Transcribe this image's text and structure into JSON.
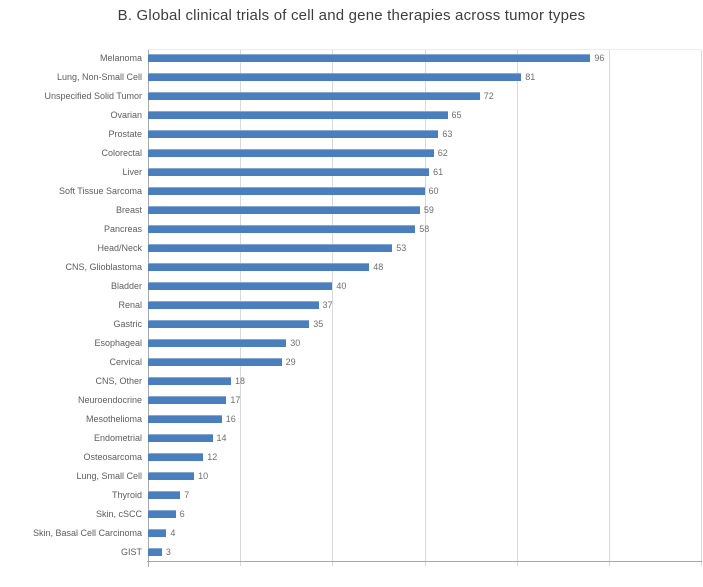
{
  "chart_data": {
    "type": "bar",
    "orientation": "horizontal",
    "title": "B. Global clinical trials of cell and gene therapies across tumor types",
    "categories": [
      "Melanoma",
      "Lung, Non-Small Cell",
      "Unspecified Solid Tumor",
      "Ovarian",
      "Prostate",
      "Colorectal",
      "Liver",
      "Soft Tissue Sarcoma",
      "Breast",
      "Pancreas",
      "Head/Neck",
      "CNS, Glioblastoma",
      "Bladder",
      "Renal",
      "Gastric",
      "Esophageal",
      "Cervical",
      "CNS, Other",
      "Neuroendocrine",
      "Mesothelioma",
      "Endometrial",
      "Osteosarcoma",
      "Lung, Small Cell",
      "Thyroid",
      "Skin, cSCC",
      "Skin, Basal Cell Carcinoma",
      "GIST"
    ],
    "values": [
      96,
      81,
      72,
      65,
      63,
      62,
      61,
      60,
      59,
      58,
      53,
      48,
      40,
      37,
      35,
      30,
      29,
      18,
      17,
      16,
      14,
      12,
      10,
      7,
      6,
      4,
      3
    ],
    "data_labels": "shown at end of each bar",
    "xlabel": "",
    "ylabel": "",
    "xaxis": {
      "min": 0,
      "max": 120,
      "grid_step": 20,
      "tick_labels_visible": false
    },
    "grid": "vertical gridlines on",
    "legend": "none",
    "colors": {
      "bar": "#4a7ebc",
      "bar_highlight": "#86a9d4",
      "gridline": "#d9d9d9",
      "axis_line": "#a8a8a8",
      "category_label": "#5d5d5d",
      "value_label": "#6e6e6e",
      "title": "#3d3d3d",
      "background": "#ffffff"
    }
  }
}
